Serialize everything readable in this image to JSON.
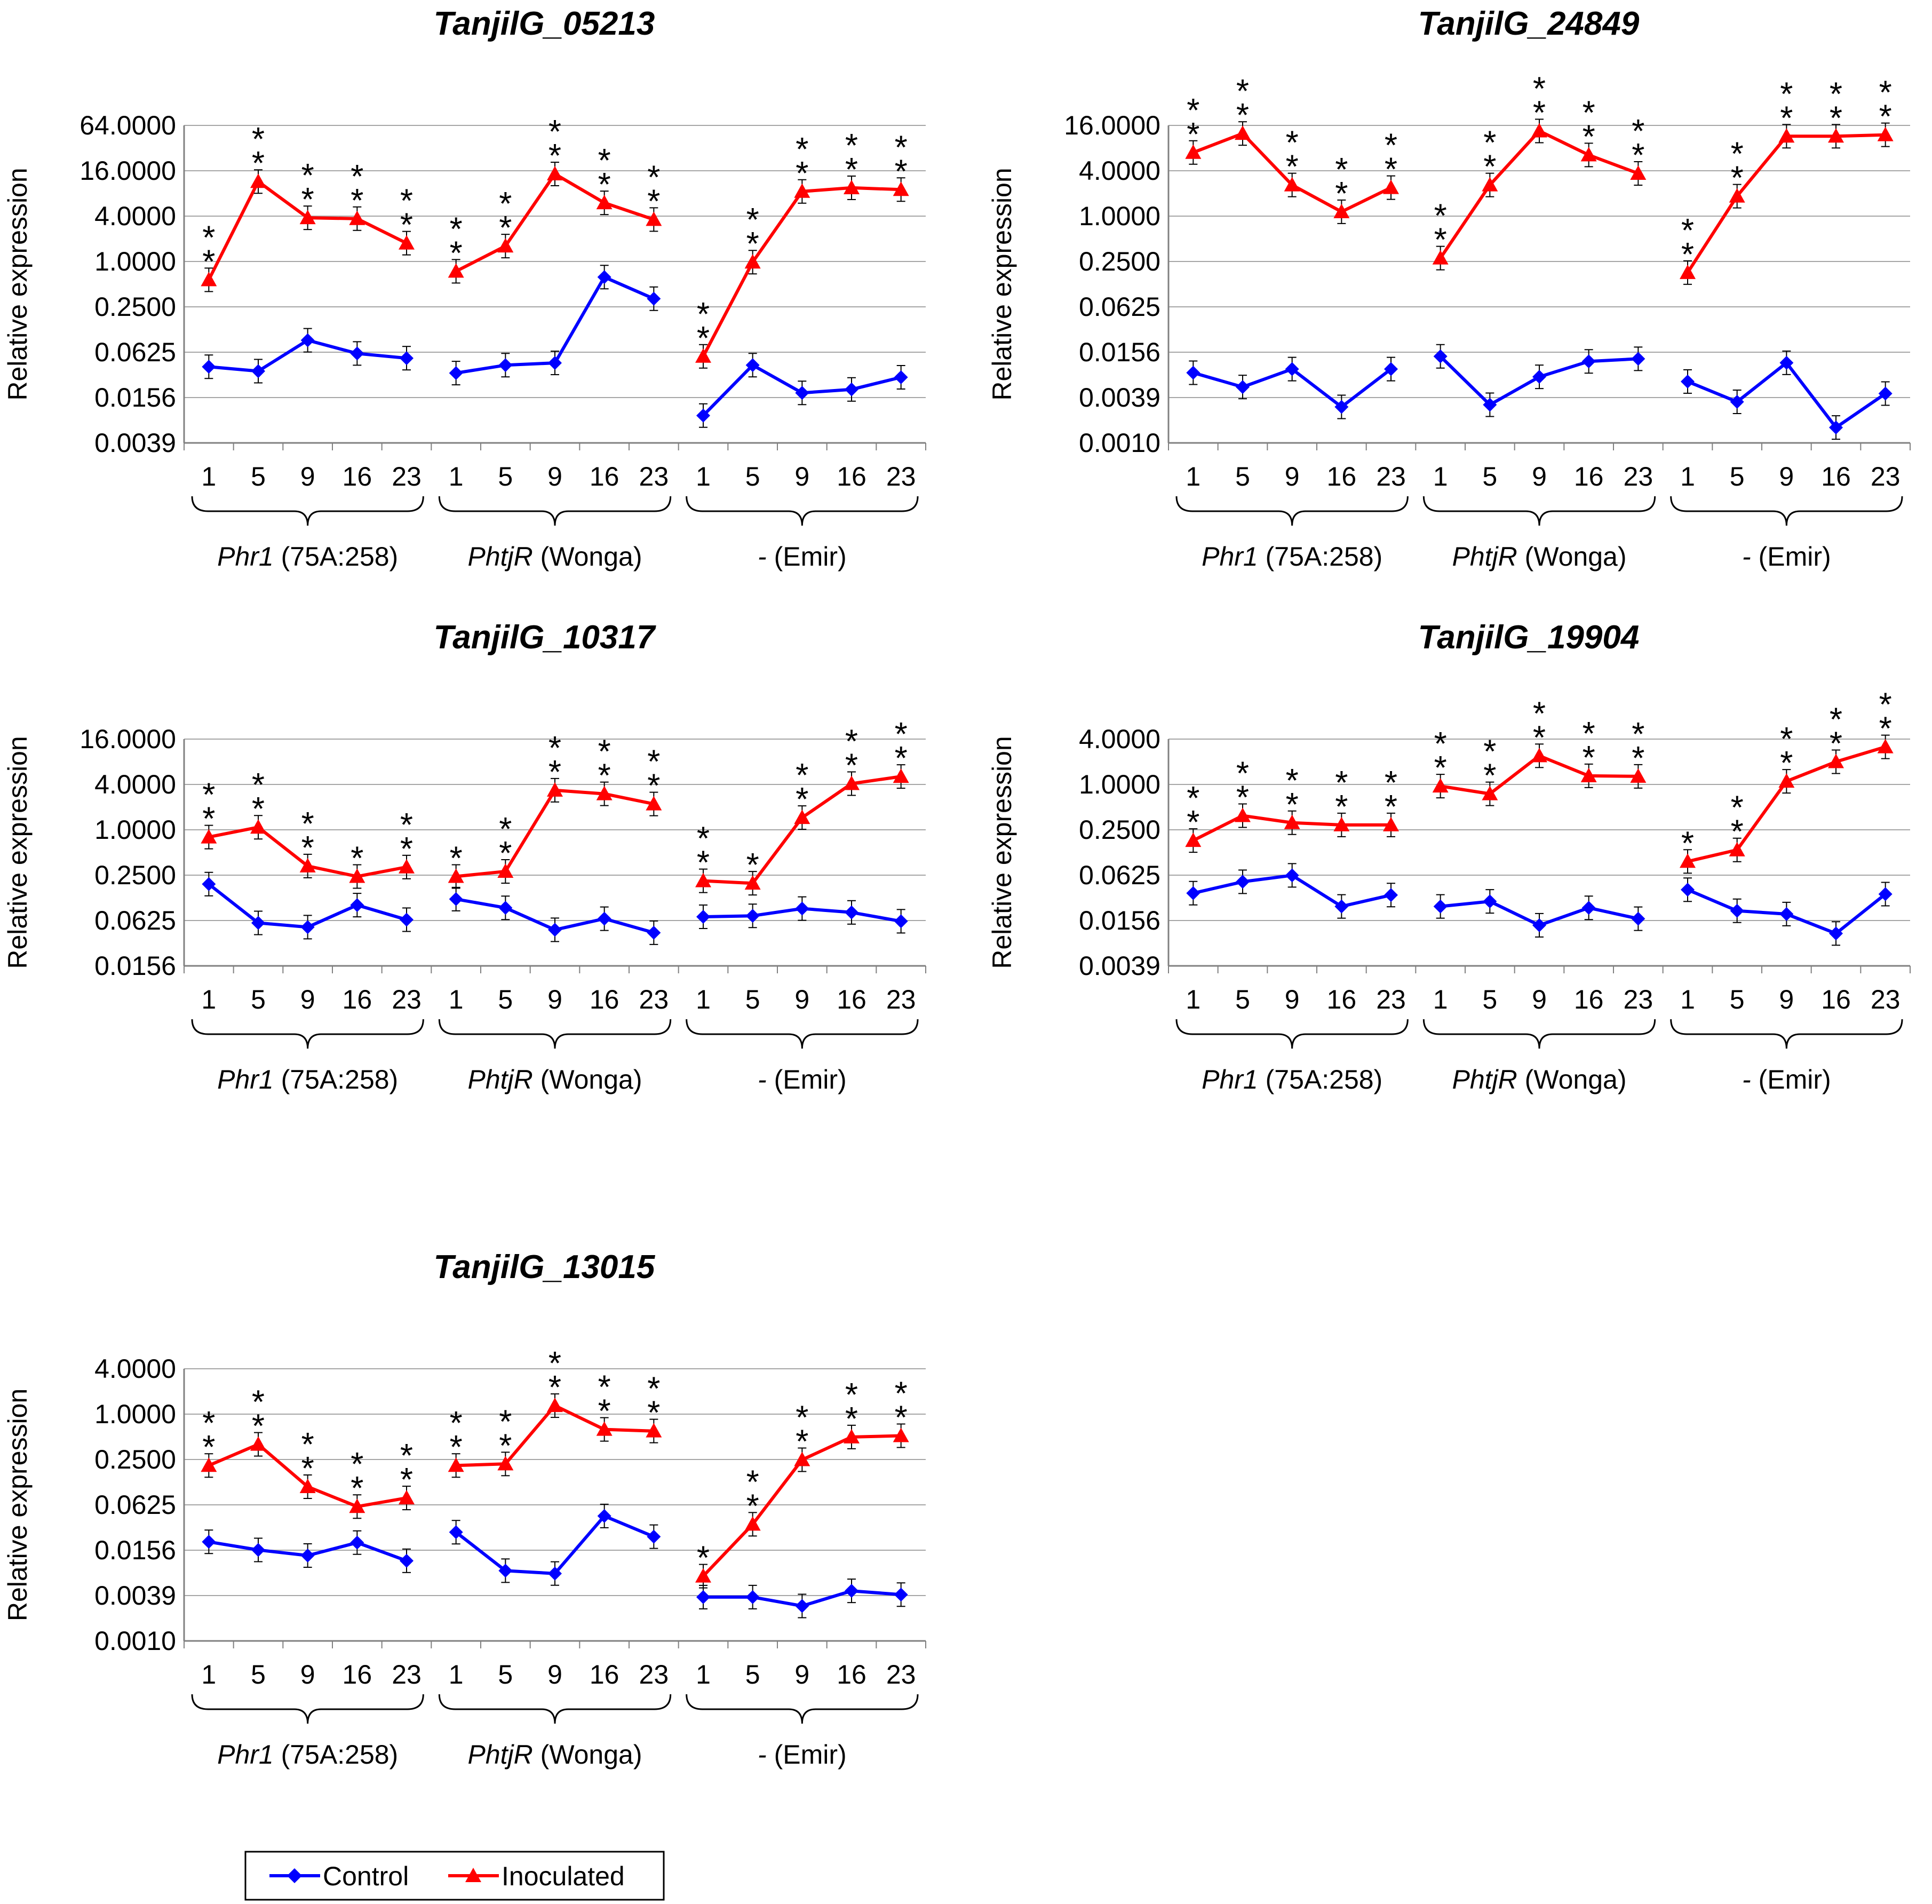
{
  "figure": {
    "legend": {
      "control_label": "Control",
      "inoculated_label": "Inoculated"
    }
  },
  "colors": {
    "control": "#0000ff",
    "inoculated": "#ff0000",
    "grid": "#a6a6a6",
    "axis": "#808080"
  },
  "chart_data": [
    {
      "type": "line",
      "title": "TanjilG_05213",
      "ylabel": "Relative expression",
      "yscale": "log2",
      "yticks": [
        "64.0000",
        "16.0000",
        "4.0000",
        "1.0000",
        "0.2500",
        "0.0625",
        "0.0156",
        "0.0039"
      ],
      "ylim": [
        0.0039,
        64
      ],
      "timepoints": [
        "1",
        "5",
        "9",
        "16",
        "23"
      ],
      "groups": [
        {
          "gene": "Phr1",
          "cultivar": "(75A:258)"
        },
        {
          "gene": "PhtjR",
          "cultivar": "(Wonga)"
        },
        {
          "gene": "-",
          "cultivar": "(Emir)"
        }
      ],
      "series": [
        {
          "name": "Control",
          "values": [
            [
              0.04,
              0.035,
              0.09,
              0.06,
              0.052
            ],
            [
              0.033,
              0.042,
              0.045,
              0.62,
              0.32
            ],
            [
              0.009,
              0.042,
              0.018,
              0.02,
              0.029
            ]
          ]
        },
        {
          "name": "Inoculated",
          "values": [
            [
              0.57,
              11.5,
              3.8,
              3.7,
              1.75
            ],
            [
              0.74,
              1.6,
              14.5,
              6.0,
              3.6
            ],
            [
              0.055,
              0.98,
              8.5,
              9.5,
              9.0
            ]
          ]
        }
      ],
      "significance": [
        [
          "**",
          "**",
          "**",
          "**",
          "**"
        ],
        [
          "**",
          "**",
          "**",
          "**",
          "**"
        ],
        [
          "**",
          "**",
          "**",
          "**",
          "**"
        ]
      ]
    },
    {
      "type": "line",
      "title": "TanjilG_24849",
      "ylabel": "Relative expression",
      "yscale": "log2",
      "yticks": [
        "16.0000",
        "4.0000",
        "1.0000",
        "0.2500",
        "0.0625",
        "0.0156",
        "0.0039",
        "0.0010"
      ],
      "ylim": [
        0.001,
        16
      ],
      "timepoints": [
        "1",
        "5",
        "9",
        "16",
        "23"
      ],
      "groups": [
        {
          "gene": "Phr1",
          "cultivar": "(75A:258)"
        },
        {
          "gene": "PhtjR",
          "cultivar": "(Wonga)"
        },
        {
          "gene": "-",
          "cultivar": "(Emir)"
        }
      ],
      "series": [
        {
          "name": "Control",
          "values": [
            [
              0.0085,
              0.0055,
              0.0095,
              0.003,
              0.0095
            ],
            [
              0.014,
              0.0032,
              0.0075,
              0.012,
              0.013
            ],
            [
              0.0065,
              0.0035,
              0.0115,
              0.0016,
              0.0045
            ]
          ]
        },
        {
          "name": "Inoculated",
          "values": [
            [
              7.0,
              12.5,
              2.6,
              1.15,
              2.4
            ],
            [
              0.28,
              2.6,
              13.5,
              6.5,
              3.7
            ],
            [
              0.18,
              1.85,
              11.5,
              11.5,
              12.0
            ]
          ]
        }
      ],
      "significance": [
        [
          "**",
          "**",
          "**",
          "**",
          "**"
        ],
        [
          "**",
          "**",
          "**",
          "**",
          "**"
        ],
        [
          "**",
          "**",
          "**",
          "**",
          "**"
        ]
      ]
    },
    {
      "type": "line",
      "title": "TanjilG_10317",
      "ylabel": "Relative expression",
      "yscale": "log2",
      "yticks": [
        "16.0000",
        "4.0000",
        "1.0000",
        "0.2500",
        "0.0625",
        "0.0156"
      ],
      "ylim": [
        0.0156,
        16
      ],
      "timepoints": [
        "1",
        "5",
        "9",
        "16",
        "23"
      ],
      "groups": [
        {
          "gene": "Phr1",
          "cultivar": "(75A:258)"
        },
        {
          "gene": "PhtjR",
          "cultivar": "(Wonga)"
        },
        {
          "gene": "-",
          "cultivar": "(Emir)"
        }
      ],
      "series": [
        {
          "name": "Control",
          "values": [
            [
              0.19,
              0.058,
              0.051,
              0.1,
              0.064
            ],
            [
              0.12,
              0.092,
              0.047,
              0.066,
              0.043
            ],
            [
              0.07,
              0.072,
              0.09,
              0.08,
              0.061
            ]
          ]
        },
        {
          "name": "Inoculated",
          "values": [
            [
              0.8,
              1.08,
              0.33,
              0.24,
              0.32
            ],
            [
              0.24,
              0.28,
              3.35,
              3.0,
              2.2
            ],
            [
              0.21,
              0.195,
              1.45,
              4.1,
              5.1
            ]
          ]
        }
      ],
      "significance": [
        [
          "**",
          "**",
          "**",
          "*",
          "**"
        ],
        [
          "*",
          "**",
          "**",
          "**",
          "**"
        ],
        [
          "**",
          "*",
          "**",
          "**",
          "**"
        ]
      ]
    },
    {
      "type": "line",
      "title": "TanjilG_19904",
      "ylabel": "Relative expression",
      "yscale": "log2",
      "yticks": [
        "4.0000",
        "1.0000",
        "0.2500",
        "0.0625",
        "0.0156",
        "0.0039"
      ],
      "ylim": [
        0.0039,
        4
      ],
      "timepoints": [
        "1",
        "5",
        "9",
        "16",
        "23"
      ],
      "groups": [
        {
          "gene": "Phr1",
          "cultivar": "(75A:258)"
        },
        {
          "gene": "PhtjR",
          "cultivar": "(Wonga)"
        },
        {
          "gene": "-",
          "cultivar": "(Emir)"
        }
      ],
      "series": [
        {
          "name": "Control",
          "values": [
            [
              0.036,
              0.051,
              0.062,
              0.024,
              0.034
            ],
            [
              0.024,
              0.028,
              0.0135,
              0.023,
              0.0165
            ],
            [
              0.04,
              0.021,
              0.019,
              0.0105,
              0.035
            ]
          ]
        },
        {
          "name": "Inoculated",
          "values": [
            [
              0.18,
              0.385,
              0.31,
              0.29,
              0.29
            ],
            [
              0.95,
              0.75,
              2.4,
              1.3,
              1.28
            ],
            [
              0.095,
              0.135,
              1.1,
              2.0,
              3.15
            ]
          ]
        }
      ],
      "significance": [
        [
          "**",
          "**",
          "**",
          "**",
          "**"
        ],
        [
          "**",
          "**",
          "**",
          "**",
          "**"
        ],
        [
          "*",
          "**",
          "**",
          "**",
          "**"
        ]
      ]
    },
    {
      "type": "line",
      "title": "TanjilG_13015",
      "ylabel": "Relative expression",
      "yscale": "log2",
      "yticks": [
        "4.0000",
        "1.0000",
        "0.2500",
        "0.0625",
        "0.0156",
        "0.0039",
        "0.0010"
      ],
      "ylim": [
        0.001,
        4
      ],
      "timepoints": [
        "1",
        "5",
        "9",
        "16",
        "23"
      ],
      "groups": [
        {
          "gene": "Phr1",
          "cultivar": "(75A:258)"
        },
        {
          "gene": "PhtjR",
          "cultivar": "(Wonga)"
        },
        {
          "gene": "-",
          "cultivar": "(Emir)"
        }
      ],
      "series": [
        {
          "name": "Control",
          "values": [
            [
              0.0205,
              0.016,
              0.0135,
              0.02,
              0.0115
            ],
            [
              0.0275,
              0.0085,
              0.0078,
              0.045,
              0.024
            ],
            [
              0.0038,
              0.0038,
              0.0029,
              0.0046,
              0.0041
            ]
          ]
        },
        {
          "name": "Inoculated",
          "values": [
            [
              0.21,
              0.4,
              0.11,
              0.06,
              0.078
            ],
            [
              0.21,
              0.22,
              1.3,
              0.63,
              0.6
            ],
            [
              0.0072,
              0.035,
              0.25,
              0.5,
              0.52
            ]
          ]
        }
      ],
      "significance": [
        [
          "**",
          "**",
          "**",
          "**",
          "**"
        ],
        [
          "**",
          "**",
          "**",
          "**",
          "**"
        ],
        [
          "*",
          "**",
          "**",
          "**",
          "**"
        ]
      ]
    }
  ]
}
